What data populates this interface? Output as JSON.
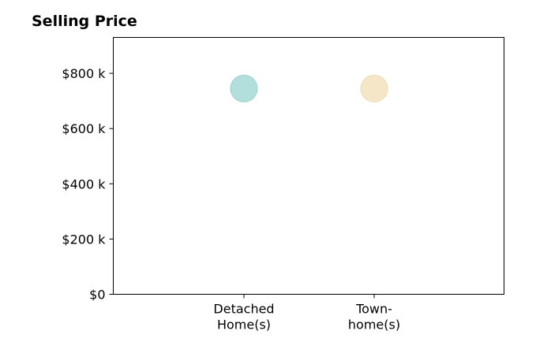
{
  "chart_data": {
    "type": "scatter",
    "title": "Selling Price",
    "categories": [
      "Detached\nHome(s)",
      "Town-\nhome(s)"
    ],
    "values": [
      745000,
      745000
    ],
    "point_colors": [
      "#b2dfdb",
      "#f5e6c8"
    ],
    "point_stroke_colors": [
      "#9ccfca",
      "#ecdab6"
    ],
    "y_ticks": [
      0,
      200000,
      400000,
      600000,
      800000
    ],
    "y_tick_labels": [
      "$0",
      "$200 k",
      "$400 k",
      "$600 k",
      "$800 k"
    ],
    "ylim": [
      0,
      930000
    ],
    "xlabel": "",
    "ylabel": "",
    "grid": false,
    "legend": "none"
  }
}
